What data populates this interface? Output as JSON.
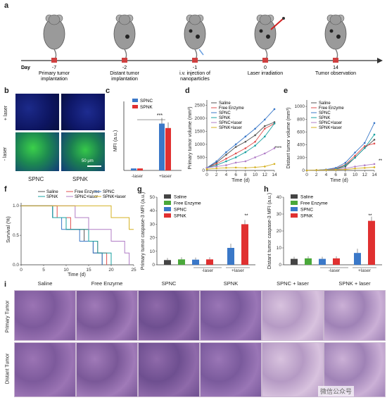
{
  "panel_labels": {
    "a": "a",
    "b": "b",
    "c": "c",
    "d": "d",
    "e": "e",
    "f": "f",
    "g": "g",
    "h": "h",
    "i": "i"
  },
  "timeline": {
    "day_label": "Day",
    "events": [
      {
        "day": "-7",
        "line1": "Primary tumor",
        "line2": "implantation"
      },
      {
        "day": "-2",
        "line1": "Distant tumor",
        "line2": "implantation"
      },
      {
        "day": "-1",
        "line1": "i.v. injection of",
        "line2": "nanoparticles"
      },
      {
        "day": "0",
        "line1": "Laser irradiation",
        "line2": ""
      },
      {
        "day": "14",
        "line1": "Tumor observation",
        "line2": ""
      }
    ]
  },
  "panel_b": {
    "row_top": "+ laser",
    "row_bottom": "- laser",
    "col1": "SPNC",
    "col2": "SPNK",
    "scale": "50 μm"
  },
  "colors": {
    "saline": "#555555",
    "free": "#e05050",
    "spnc": "#3a78c8",
    "spnk": "#1aa0a0",
    "spnc_laser": "#b07cc6",
    "spnk_laser": "#d4b020",
    "bar_saline": "#444444",
    "bar_free": "#4aa83a",
    "bar_spnc": "#3a78c8",
    "bar_spnk": "#e03030",
    "he_bg": "#e6d6ea",
    "he_dark": "#8d6aa6"
  },
  "chart_data": [
    {
      "id": "c",
      "type": "bar",
      "ylabel": "MFI (a.u.)",
      "categories": [
        "-laser",
        "+laser"
      ],
      "series": [
        {
          "name": "SPNC",
          "values": [
            0.4,
            9.5
          ]
        },
        {
          "name": "SPNK",
          "values": [
            0.4,
            8.6
          ]
        }
      ],
      "ylim": [
        0,
        14
      ],
      "annotation": "***"
    },
    {
      "id": "d",
      "type": "line",
      "xlabel": "Time (d)",
      "ylabel": "Primary tumor volume (mm³)",
      "x": [
        0,
        2,
        4,
        6,
        8,
        10,
        12,
        14
      ],
      "xticks": [
        0,
        2,
        4,
        6,
        8,
        10,
        12,
        14
      ],
      "yticks": [
        0,
        500,
        1000,
        1500,
        2000,
        2500
      ],
      "ylim": [
        0,
        2700
      ],
      "series": [
        {
          "name": "Saline",
          "values": [
            100,
            300,
            600,
            900,
            1100,
            1350,
            1700,
            1850
          ]
        },
        {
          "name": "Free Enzyme",
          "values": [
            100,
            250,
            450,
            650,
            850,
            1100,
            1600,
            1800
          ]
        },
        {
          "name": "SPNC",
          "values": [
            100,
            350,
            700,
            1000,
            1300,
            1600,
            1950,
            2350
          ]
        },
        {
          "name": "SPNK",
          "values": [
            100,
            200,
            350,
            500,
            700,
            950,
            1300,
            1800
          ]
        },
        {
          "name": "SPNC+laser",
          "values": [
            100,
            150,
            200,
            300,
            350,
            500,
            650,
            850
          ]
        },
        {
          "name": "SPNK+laser",
          "values": [
            50,
            80,
            100,
            110,
            100,
            120,
            150,
            250
          ]
        }
      ],
      "annotation": "****"
    },
    {
      "id": "e",
      "type": "line",
      "xlabel": "Time (d)",
      "ylabel": "Distant tumor volume (mm³)",
      "x": [
        0,
        2,
        4,
        6,
        8,
        10,
        12,
        14
      ],
      "xticks": [
        0,
        2,
        4,
        6,
        8,
        10,
        12,
        14
      ],
      "yticks": [
        0,
        200,
        400,
        600,
        800,
        1000
      ],
      "ylim": [
        0,
        1100
      ],
      "series": [
        {
          "name": "Saline",
          "values": [
            0,
            5,
            10,
            20,
            60,
            200,
            350,
            480
          ]
        },
        {
          "name": "Free Enzyme",
          "values": [
            0,
            5,
            10,
            30,
            90,
            230,
            380,
            420
          ]
        },
        {
          "name": "SPNC",
          "values": [
            0,
            5,
            15,
            40,
            120,
            280,
            430,
            740
          ]
        },
        {
          "name": "SPNK",
          "values": [
            0,
            5,
            10,
            20,
            80,
            200,
            350,
            560
          ]
        },
        {
          "name": "SPNC+laser",
          "values": [
            0,
            5,
            10,
            15,
            30,
            60,
            80,
            100
          ]
        },
        {
          "name": "SPNK+laser",
          "values": [
            0,
            5,
            8,
            10,
            15,
            30,
            40,
            50
          ]
        }
      ],
      "annotation": "**"
    },
    {
      "id": "f",
      "type": "line",
      "xlabel": "Time (d)",
      "ylabel": "Survival (%)",
      "xticks": [
        0,
        5,
        10,
        15,
        20,
        25
      ],
      "yticks": [
        "0.0",
        "0.5",
        "1.0"
      ],
      "xlim": [
        0,
        25
      ],
      "ylim": [
        0,
        1.05
      ],
      "series": [
        {
          "name": "Saline",
          "steps": [
            [
              0,
              1
            ],
            [
              7,
              1
            ],
            [
              7,
              0.8
            ],
            [
              10,
              0.8
            ],
            [
              10,
              0.6
            ],
            [
              14,
              0.6
            ],
            [
              14,
              0.4
            ],
            [
              16,
              0.4
            ],
            [
              16,
              0.2
            ],
            [
              18,
              0.2
            ],
            [
              18,
              0
            ]
          ]
        },
        {
          "name": "Free Enzyme",
          "steps": [
            [
              0,
              1
            ],
            [
              8,
              1
            ],
            [
              8,
              0.8
            ],
            [
              11,
              0.8
            ],
            [
              11,
              0.6
            ],
            [
              15,
              0.6
            ],
            [
              15,
              0.4
            ],
            [
              17,
              0.4
            ],
            [
              17,
              0.2
            ],
            [
              19,
              0.2
            ],
            [
              19,
              0
            ]
          ]
        },
        {
          "name": "SPNC",
          "steps": [
            [
              0,
              1
            ],
            [
              7,
              1
            ],
            [
              7,
              0.8
            ],
            [
              9,
              0.8
            ],
            [
              9,
              0.6
            ],
            [
              13,
              0.6
            ],
            [
              13,
              0.4
            ],
            [
              16,
              0.4
            ],
            [
              16,
              0.2
            ],
            [
              18,
              0.2
            ],
            [
              18,
              0
            ]
          ]
        },
        {
          "name": "SPNK",
          "steps": [
            [
              0,
              1
            ],
            [
              7,
              1
            ],
            [
              7,
              0.8
            ],
            [
              10,
              0.8
            ],
            [
              10,
              0.6
            ],
            [
              15,
              0.6
            ],
            [
              15,
              0.4
            ],
            [
              17,
              0.4
            ],
            [
              17,
              0.2
            ],
            [
              20,
              0.2
            ],
            [
              20,
              0
            ]
          ]
        },
        {
          "name": "SPNC+laser",
          "steps": [
            [
              0,
              1
            ],
            [
              12,
              1
            ],
            [
              12,
              0.8
            ],
            [
              15,
              0.8
            ],
            [
              15,
              0.6
            ],
            [
              20,
              0.6
            ],
            [
              20,
              0.4
            ],
            [
              23,
              0.4
            ],
            [
              23,
              0.2
            ],
            [
              24,
              0.2
            ],
            [
              24,
              0
            ]
          ]
        },
        {
          "name": "SPNK+laser",
          "steps": [
            [
              0,
              1
            ],
            [
              20,
              1
            ],
            [
              20,
              0.8
            ],
            [
              24,
              0.8
            ],
            [
              24,
              0.6
            ],
            [
              25,
              0.6
            ]
          ]
        }
      ]
    },
    {
      "id": "g",
      "type": "bar",
      "ylabel": "Primary tumor caspase-3 MFI (a.u.)",
      "categories": [
        "-laser",
        "+laser"
      ],
      "series": [
        {
          "name": "Saline",
          "values": [
            3.5,
            null
          ]
        },
        {
          "name": "Free Enzyme",
          "values": [
            4,
            null
          ]
        },
        {
          "name": "SPNC",
          "values": [
            3.8,
            12.5
          ]
        },
        {
          "name": "SPNK",
          "values": [
            4,
            30
          ]
        }
      ],
      "yticks": [
        0,
        10,
        20,
        30,
        40,
        50
      ],
      "ylim": [
        0,
        50
      ],
      "annotation": "**"
    },
    {
      "id": "h",
      "type": "bar",
      "ylabel": "Distant tumor caspase-3 MFI (a.u.)",
      "categories": [
        "-laser",
        "+laser"
      ],
      "series": [
        {
          "name": "Saline",
          "values": [
            3.5,
            null
          ]
        },
        {
          "name": "Free Enzyme",
          "values": [
            3.8,
            null
          ]
        },
        {
          "name": "SPNC",
          "values": [
            3.5,
            7
          ]
        },
        {
          "name": "SPNK",
          "values": [
            3.8,
            26
          ]
        }
      ],
      "yticks": [
        0,
        10,
        20,
        30,
        40
      ],
      "ylim": [
        0,
        40
      ],
      "annotation": "**"
    }
  ],
  "panel_i": {
    "columns": [
      "Saline",
      "Free Enzyme",
      "SPNC",
      "SPNK",
      "SPNC + laser",
      "SPNK + laser"
    ],
    "rows": [
      "Primary Tumor",
      "Distant Tumor"
    ]
  },
  "watermark": "微信公众号"
}
